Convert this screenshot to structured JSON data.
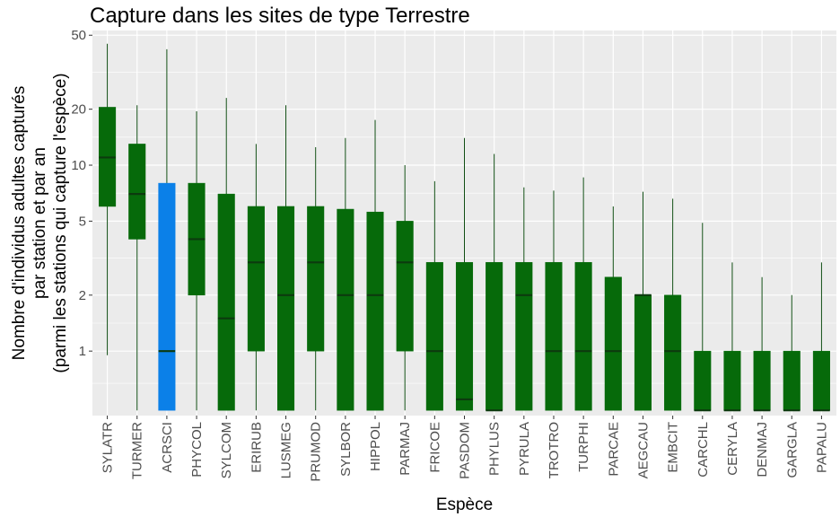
{
  "chart_data": {
    "type": "boxplot",
    "title": "Capture dans les sites de type Terrestre",
    "xlabel": "Espèce",
    "ylabel": [
      "Nombre d'individus adultes capturés",
      "par station et par an",
      "(parmi les stations qui capture l'espèce)"
    ],
    "y_scale": "log10",
    "ylim": [
      0.45,
      53
    ],
    "y_ticks": [
      1,
      2,
      5,
      10,
      20,
      50
    ],
    "y_tick_labels": [
      "1",
      "2",
      "5",
      "10",
      "20",
      "50"
    ],
    "grid": true,
    "colors": {
      "default_fill": "#066a0a",
      "highlight_fill": "#0b80e8",
      "panel_bg": "#ebebeb",
      "grid": "#ffffff"
    },
    "categories": [
      "SYLATR",
      "TURMER",
      "ACRSCI",
      "PHYCOL",
      "SYLCOM",
      "ERIRUB",
      "LUSMEG",
      "PRUMOD",
      "SYLBOR",
      "HIPPOL",
      "PARMAJ",
      "FRICOE",
      "PASDOM",
      "PHYLUS",
      "PYRULA",
      "TROTRO",
      "TURPHI",
      "PARCAE",
      "AEGCAU",
      "EMBCIT",
      "CARCHL",
      "CERYLA",
      "DENMAJ",
      "GARGLA",
      "PAPALU"
    ],
    "highlight": [
      "ACRSCI"
    ],
    "series": [
      {
        "category": "SYLATR",
        "min": 0.95,
        "q1": 6,
        "median": 11,
        "q3": 20.5,
        "max": 45
      },
      {
        "category": "TURMER",
        "min": 0.48,
        "q1": 4,
        "median": 7,
        "q3": 13,
        "max": 21
      },
      {
        "category": "ACRSCI",
        "min": 0.48,
        "q1": 0.48,
        "median": 1,
        "q3": 8,
        "max": 42
      },
      {
        "category": "PHYCOL",
        "min": 0.48,
        "q1": 2,
        "median": 4,
        "q3": 8,
        "max": 19.5
      },
      {
        "category": "SYLCOM",
        "min": 0.48,
        "q1": 0.48,
        "median": 1.5,
        "q3": 7,
        "max": 23
      },
      {
        "category": "ERIRUB",
        "min": 0.48,
        "q1": 1,
        "median": 3,
        "q3": 6,
        "max": 13
      },
      {
        "category": "LUSMEG",
        "min": 0.48,
        "q1": 0.48,
        "median": 2,
        "q3": 6,
        "max": 21
      },
      {
        "category": "PRUMOD",
        "min": 0.48,
        "q1": 1,
        "median": 3,
        "q3": 6,
        "max": 12.5
      },
      {
        "category": "SYLBOR",
        "min": 0.48,
        "q1": 0.48,
        "median": 2,
        "q3": 5.8,
        "max": 14
      },
      {
        "category": "HIPPOL",
        "min": 0.48,
        "q1": 0.48,
        "median": 2,
        "q3": 5.6,
        "max": 17.5
      },
      {
        "category": "PARMAJ",
        "min": 0.48,
        "q1": 1,
        "median": 3,
        "q3": 5,
        "max": 10
      },
      {
        "category": "FRICOE",
        "min": 0.48,
        "q1": 0.48,
        "median": 1,
        "q3": 3,
        "max": 8.2
      },
      {
        "category": "PASDOM",
        "min": 0.48,
        "q1": 0.48,
        "median": 0.55,
        "q3": 3,
        "max": 14
      },
      {
        "category": "PHYLUS",
        "min": 0.48,
        "q1": 0.48,
        "median": 0.48,
        "q3": 3,
        "max": 11.5
      },
      {
        "category": "PYRULA",
        "min": 0.48,
        "q1": 0.48,
        "median": 2,
        "q3": 3,
        "max": 7.6
      },
      {
        "category": "TROTRO",
        "min": 0.48,
        "q1": 0.48,
        "median": 1,
        "q3": 3,
        "max": 7.3
      },
      {
        "category": "TURPHI",
        "min": 0.48,
        "q1": 0.48,
        "median": 1,
        "q3": 3,
        "max": 8.6
      },
      {
        "category": "PARCAE",
        "min": 0.48,
        "q1": 0.48,
        "median": 1,
        "q3": 2.5,
        "max": 6
      },
      {
        "category": "AEGCAU",
        "min": 0.48,
        "q1": 0.48,
        "median": 2,
        "q3": 2,
        "max": 7.2
      },
      {
        "category": "EMBCIT",
        "min": 0.48,
        "q1": 0.48,
        "median": 1,
        "q3": 2,
        "max": 6.6
      },
      {
        "category": "CARCHL",
        "min": 0.48,
        "q1": 0.48,
        "median": 0.48,
        "q3": 1,
        "max": 4.9
      },
      {
        "category": "CERYLA",
        "min": 0.48,
        "q1": 0.48,
        "median": 0.48,
        "q3": 1,
        "max": 3
      },
      {
        "category": "DENMAJ",
        "min": 0.48,
        "q1": 0.48,
        "median": 0.48,
        "q3": 1,
        "max": 2.5
      },
      {
        "category": "GARGLA",
        "min": 0.48,
        "q1": 0.48,
        "median": 0.48,
        "q3": 1,
        "max": 2
      },
      {
        "category": "PAPALU",
        "min": 0.48,
        "q1": 0.48,
        "median": 0.48,
        "q3": 1,
        "max": 3
      }
    ]
  }
}
